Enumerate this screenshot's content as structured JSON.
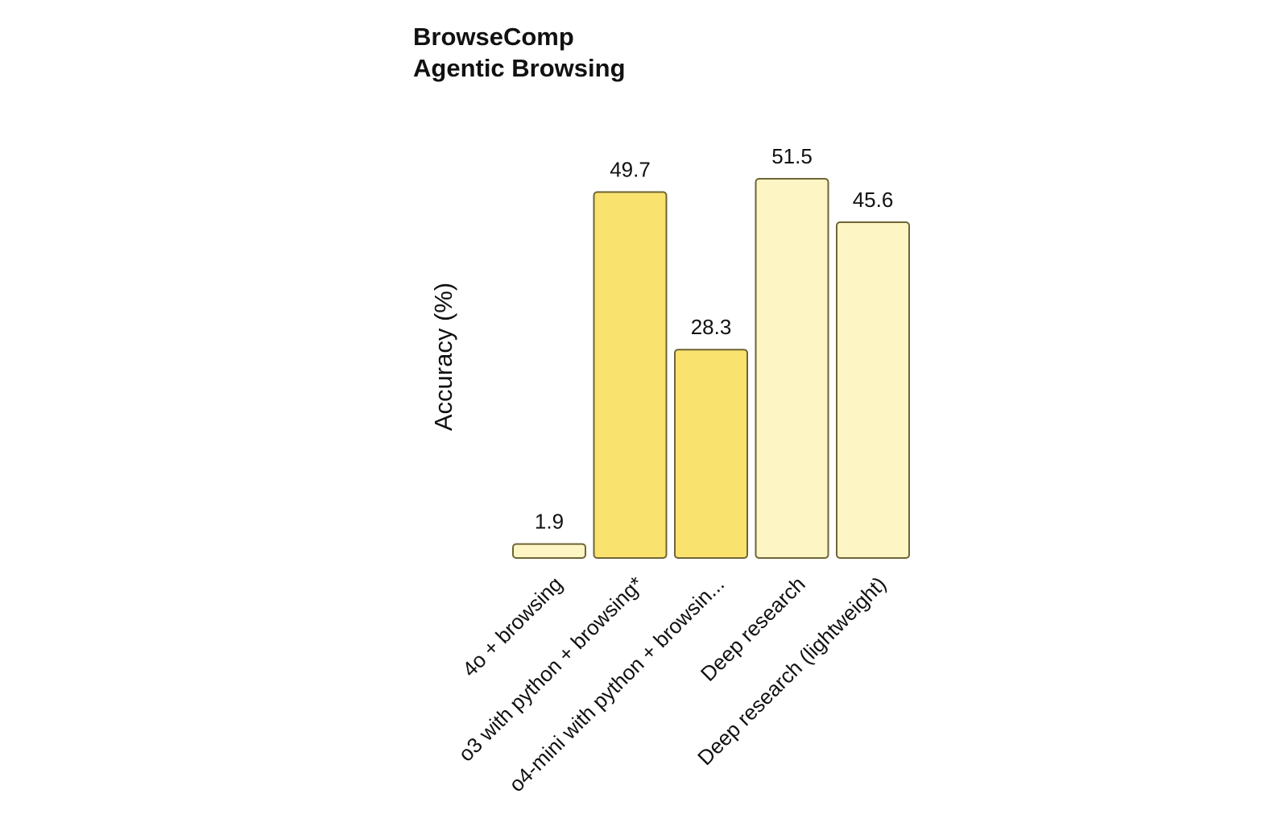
{
  "chart_data": {
    "type": "bar",
    "title": "BrowseComp",
    "subtitle": "Agentic Browsing",
    "ylabel": "Accuracy (%)",
    "xlabel": "",
    "ylim": [
      0,
      51.5
    ],
    "grid": false,
    "legend": "none",
    "categories": [
      "4o + browsing",
      "o3 with python + browsing*",
      "o4-mini with python + browsin...",
      "Deep research",
      "Deep research (lightweight)"
    ],
    "values": [
      1.9,
      49.7,
      28.3,
      51.5,
      45.6
    ],
    "value_labels": [
      "1.9",
      "49.7",
      "28.3",
      "51.5",
      "45.6"
    ],
    "colors": [
      "#FDF5C4",
      "#FAE26F",
      "#FAE26F",
      "#FDF5C4",
      "#FDF5C4"
    ],
    "stroke_color": "#6E6536"
  }
}
